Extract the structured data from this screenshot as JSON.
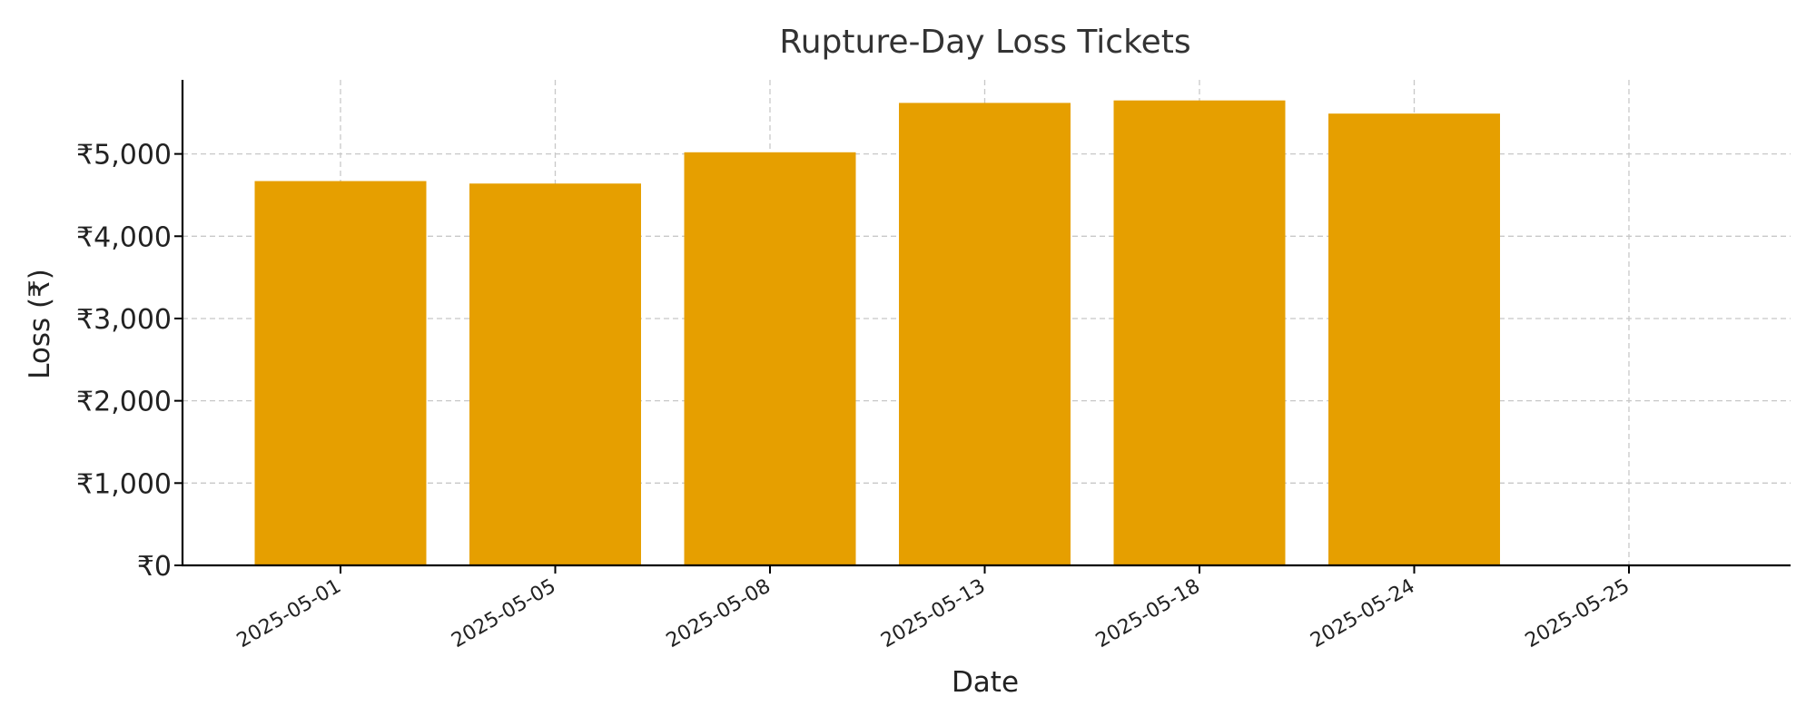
{
  "chart_data": {
    "type": "bar",
    "title": "Rupture-Day Loss Tickets",
    "xlabel": "Date",
    "ylabel": "Loss (₹)",
    "categories": [
      "2025-05-01",
      "2025-05-05",
      "2025-05-08",
      "2025-05-13",
      "2025-05-18",
      "2025-05-24",
      "2025-05-25"
    ],
    "values": [
      4670,
      4640,
      5020,
      5620,
      5650,
      5490,
      0
    ],
    "ylim": [
      0,
      5900
    ],
    "yticks": [
      0,
      1000,
      2000,
      3000,
      4000,
      5000
    ],
    "ytick_labels": [
      "₹0",
      "₹1,000",
      "₹2,000",
      "₹3,000",
      "₹4,000",
      "₹5,000"
    ],
    "bar_color": "#E69F00",
    "grid": true
  }
}
